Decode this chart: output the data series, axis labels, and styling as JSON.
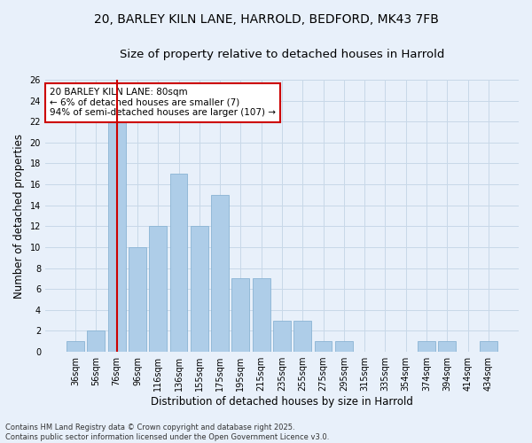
{
  "title_line1": "20, BARLEY KILN LANE, HARROLD, BEDFORD, MK43 7FB",
  "title_line2": "Size of property relative to detached houses in Harrold",
  "xlabel": "Distribution of detached houses by size in Harrold",
  "ylabel": "Number of detached properties",
  "categories": [
    "36sqm",
    "56sqm",
    "76sqm",
    "96sqm",
    "116sqm",
    "136sqm",
    "155sqm",
    "175sqm",
    "195sqm",
    "215sqm",
    "235sqm",
    "255sqm",
    "275sqm",
    "295sqm",
    "315sqm",
    "335sqm",
    "354sqm",
    "374sqm",
    "394sqm",
    "414sqm",
    "434sqm"
  ],
  "values": [
    1,
    2,
    22,
    10,
    12,
    17,
    12,
    15,
    7,
    7,
    3,
    3,
    1,
    1,
    0,
    0,
    0,
    1,
    1,
    0,
    1
  ],
  "bar_color": "#aecde8",
  "bar_edge_color": "#8ab4d4",
  "grid_color": "#c8d8e8",
  "bg_color": "#e8f0fa",
  "vline_x": 2,
  "vline_color": "#cc0000",
  "annotation_text": "20 BARLEY KILN LANE: 80sqm\n← 6% of detached houses are smaller (7)\n94% of semi-detached houses are larger (107) →",
  "annotation_box_color": "#ffffff",
  "annotation_box_edge": "#cc0000",
  "ylim": [
    0,
    26
  ],
  "yticks": [
    0,
    2,
    4,
    6,
    8,
    10,
    12,
    14,
    16,
    18,
    20,
    22,
    24,
    26
  ],
  "footnote": "Contains HM Land Registry data © Crown copyright and database right 2025.\nContains public sector information licensed under the Open Government Licence v3.0.",
  "title_fontsize": 10,
  "subtitle_fontsize": 9.5,
  "label_fontsize": 8.5,
  "tick_fontsize": 7,
  "annotation_fontsize": 7.5,
  "footnote_fontsize": 6
}
